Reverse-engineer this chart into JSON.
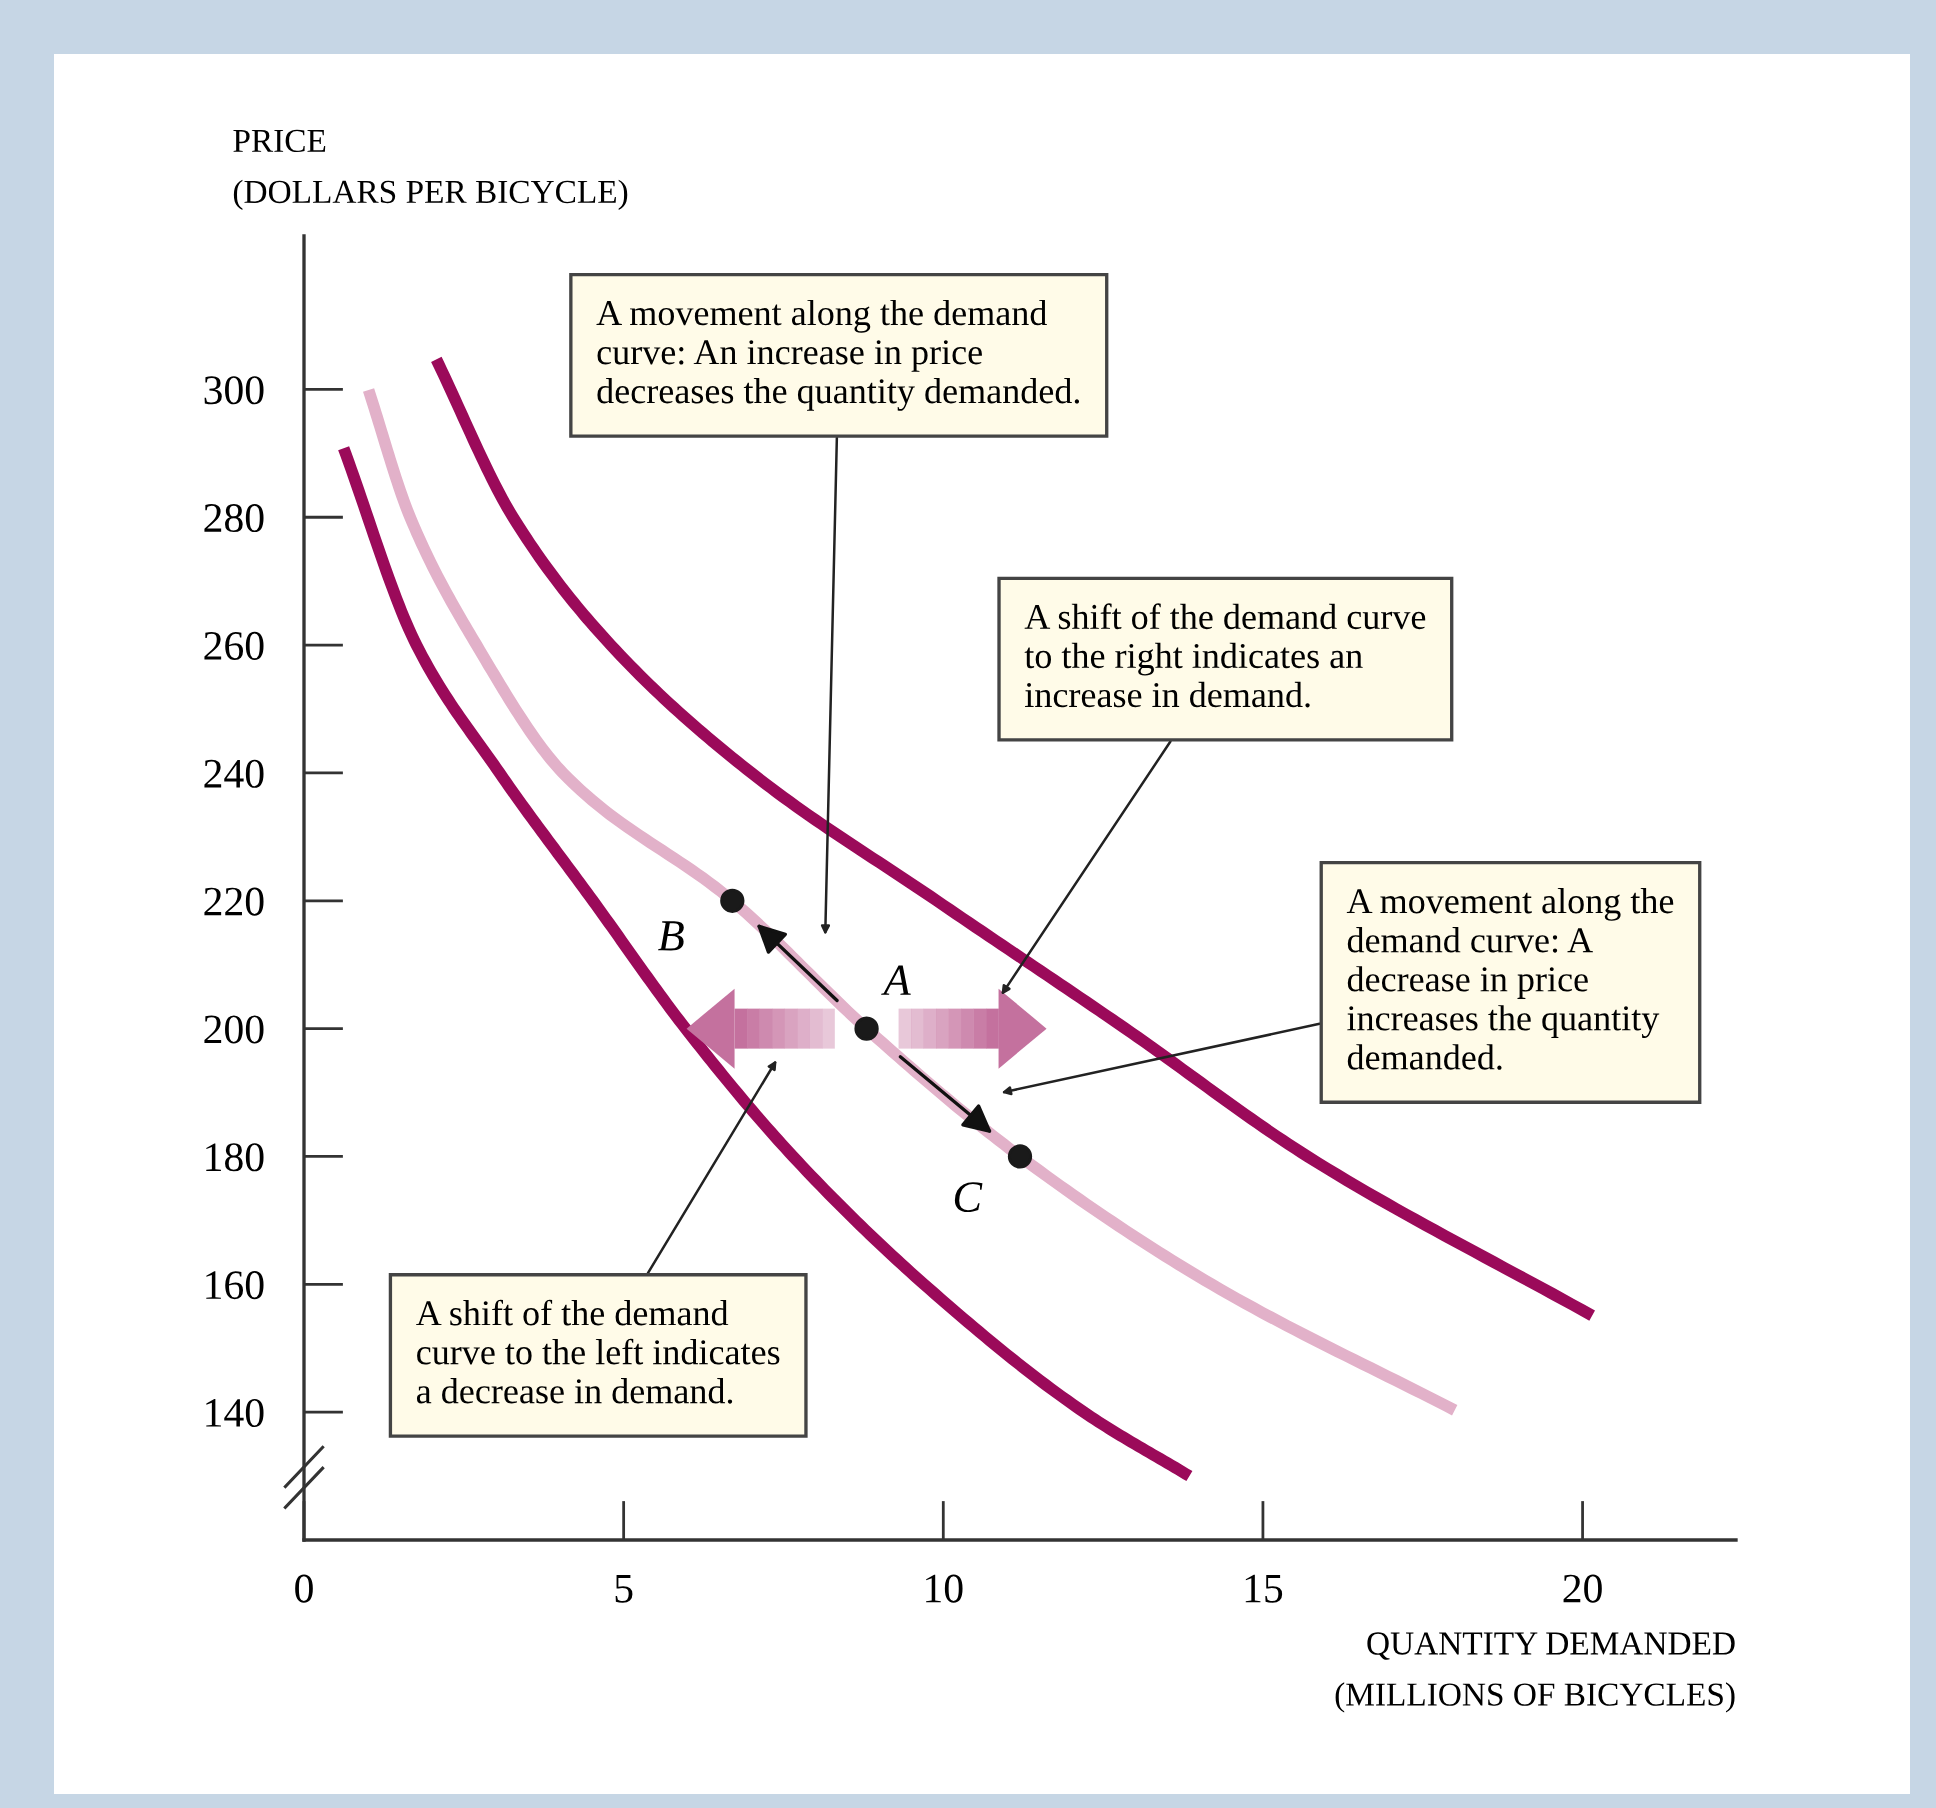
{
  "chart_data": {
    "type": "line",
    "xlabel": "QUANTITY DEMANDED\n(MILLIONS OF BICYCLES)",
    "ylabel": "PRICE\n(DOLLARS PER BICYCLE)",
    "xlim": [
      0,
      22.4
    ],
    "ylim": [
      120,
      324
    ],
    "xticks": [
      0,
      5,
      10,
      15,
      20
    ],
    "yticks": [
      140,
      160,
      180,
      200,
      220,
      240,
      260,
      280,
      300
    ],
    "grid": false,
    "legend": false,
    "series": [
      {
        "color": "#9b0a5a",
        "marker": "none",
        "x": [
          0.62,
          1.76,
          3.06,
          4.52,
          5.97,
          7.65,
          9.7,
          12.2,
          13.85
        ],
        "values": [
          290.8,
          260,
          240,
          220,
          200,
          180,
          160,
          140,
          130
        ]
      },
      {
        "color": "#e2b1c9",
        "marker": "none",
        "x": [
          1.01,
          1.66,
          2.7,
          4.05,
          6.7,
          8.8,
          11.2,
          14.2,
          18.0
        ],
        "values": [
          299.9,
          280,
          260,
          240,
          220,
          200,
          180,
          160,
          140.3
        ]
      },
      {
        "color": "#9b0a5a",
        "marker": "none",
        "x": [
          2.07,
          3.27,
          4.8,
          7.0,
          9.9,
          12.85,
          15.7,
          20.15
        ],
        "values": [
          304.7,
          280,
          260,
          240,
          220,
          200,
          180,
          155.1
        ]
      },
      {
        "type": "scatter",
        "color": "#1a1a1a",
        "marker": "circle",
        "x": [
          6.7,
          8.8,
          11.2
        ],
        "values": [
          220,
          200,
          180
        ]
      }
    ],
    "annotations": [
      "A movement along the demand\ncurve: An increase in price\ndecreases the quantity demanded.",
      "A shift of the demand curve\nto the right indicates an\nincrease in demand.",
      "A movement along the\ndemand curve: A\ndecrease in price\nincreases the quantity\ndemanded.",
      "A shift of the demand\ncurve to the left indicates\na decrease in demand.",
      {
        "text": "B",
        "x": 6.7,
        "y": 220
      },
      {
        "text": "A",
        "x": 8.8,
        "y": 200
      },
      {
        "text": "C",
        "x": 11.2,
        "y": 180
      }
    ]
  }
}
